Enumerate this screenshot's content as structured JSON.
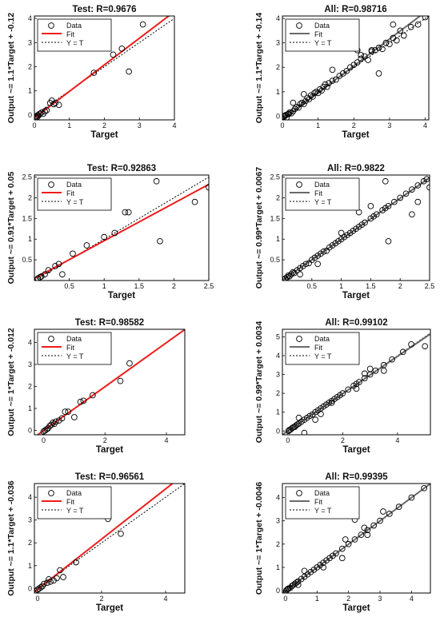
{
  "figure": {
    "type": "scatter-grid",
    "rows": 4,
    "cols": 2
  },
  "legend_labels": [
    "Data",
    "Fit",
    "Y = T"
  ],
  "colors": {
    "test_fit": "#ee1c1c",
    "all_fit": "#6a6a6a",
    "marker": "#000000",
    "identity": "#000000"
  },
  "chart_data": [
    {
      "type": "scatter",
      "title": "Test: R=0.9676",
      "xlabel": "Target",
      "ylabel": "Output ~= 1.1*Target + -0.12",
      "xlim": [
        0,
        4
      ],
      "ylim": [
        -0.2,
        4.1
      ],
      "xticks": [
        0,
        1,
        2,
        3,
        4
      ],
      "yticks": [
        0,
        1,
        2,
        3,
        4
      ],
      "fit": {
        "slope": 1.1,
        "intercept": -0.12
      },
      "legend": "top-left",
      "points": [
        [
          0.05,
          -0.05
        ],
        [
          0.1,
          0.0
        ],
        [
          0.15,
          0.05
        ],
        [
          0.2,
          0.1
        ],
        [
          0.08,
          -0.08
        ],
        [
          0.3,
          0.15
        ],
        [
          0.35,
          0.2
        ],
        [
          0.45,
          0.5
        ],
        [
          0.5,
          0.6
        ],
        [
          0.55,
          0.45
        ],
        [
          0.6,
          0.5
        ],
        [
          0.7,
          0.42
        ],
        [
          1.7,
          1.75
        ],
        [
          2.25,
          2.5
        ],
        [
          2.5,
          2.75
        ],
        [
          2.7,
          1.8
        ],
        [
          3.1,
          3.75
        ],
        [
          0.03,
          -0.1
        ],
        [
          0.12,
          -0.02
        ],
        [
          0.25,
          0.05
        ]
      ]
    },
    {
      "type": "scatter",
      "title": "All: R=0.98716",
      "xlabel": "Target",
      "ylabel": "Output ~= 1.1*Target + -0.14",
      "xlim": [
        0,
        4.1
      ],
      "ylim": [
        -0.15,
        4.1
      ],
      "xticks": [
        0,
        1,
        2,
        3,
        4
      ],
      "yticks": [
        0,
        1,
        2,
        3,
        4
      ],
      "fit": {
        "slope": 1.1,
        "intercept": -0.14
      },
      "legend": "top-left",
      "points": [
        [
          0.02,
          0.0
        ],
        [
          0.05,
          -0.02
        ],
        [
          0.08,
          0.03
        ],
        [
          0.1,
          0.05
        ],
        [
          0.12,
          -0.05
        ],
        [
          0.15,
          0.08
        ],
        [
          0.18,
          0.1
        ],
        [
          0.2,
          0.15
        ],
        [
          0.25,
          0.12
        ],
        [
          0.3,
          0.2
        ],
        [
          0.35,
          0.3
        ],
        [
          0.4,
          0.38
        ],
        [
          0.45,
          0.35
        ],
        [
          0.5,
          0.5
        ],
        [
          0.55,
          0.55
        ],
        [
          0.6,
          0.5
        ],
        [
          0.65,
          0.62
        ],
        [
          0.7,
          0.75
        ],
        [
          0.75,
          0.7
        ],
        [
          0.8,
          0.85
        ],
        [
          0.85,
          0.8
        ],
        [
          0.9,
          0.95
        ],
        [
          0.95,
          1.0
        ],
        [
          1.0,
          0.95
        ],
        [
          1.05,
          1.1
        ],
        [
          1.1,
          1.05
        ],
        [
          1.15,
          1.2
        ],
        [
          1.2,
          1.3
        ],
        [
          1.25,
          1.2
        ],
        [
          1.3,
          1.35
        ],
        [
          1.4,
          1.45
        ],
        [
          1.5,
          1.5
        ],
        [
          1.6,
          1.65
        ],
        [
          1.7,
          1.75
        ],
        [
          1.8,
          1.85
        ],
        [
          1.9,
          2.0
        ],
        [
          2.0,
          2.1
        ],
        [
          2.1,
          2.2
        ],
        [
          2.2,
          2.35
        ],
        [
          2.3,
          2.45
        ],
        [
          2.4,
          2.3
        ],
        [
          2.5,
          2.65
        ],
        [
          2.6,
          2.7
        ],
        [
          2.7,
          2.8
        ],
        [
          2.8,
          2.75
        ],
        [
          2.9,
          3.0
        ],
        [
          3.0,
          2.95
        ],
        [
          3.1,
          3.2
        ],
        [
          3.2,
          3.1
        ],
        [
          3.3,
          3.5
        ],
        [
          3.4,
          3.3
        ],
        [
          3.6,
          3.65
        ],
        [
          3.8,
          3.75
        ],
        [
          4.0,
          4.05
        ],
        [
          0.6,
          0.9
        ],
        [
          0.3,
          0.55
        ],
        [
          2.1,
          2.7
        ],
        [
          1.4,
          1.9
        ],
        [
          2.2,
          2.5
        ],
        [
          2.7,
          1.75
        ],
        [
          3.1,
          3.75
        ],
        [
          2.5,
          2.7
        ]
      ]
    },
    {
      "type": "scatter",
      "title": "Test: R=0.92863",
      "xlabel": "Target",
      "ylabel": "Output ~= 0.91*Target + 0.05",
      "xlim": [
        0,
        2.5
      ],
      "ylim": [
        0,
        2.55
      ],
      "xticks": [
        0.5,
        1,
        1.5,
        2,
        2.5
      ],
      "yticks": [
        0.5,
        1,
        1.5,
        2,
        2.5
      ],
      "fit": {
        "slope": 0.91,
        "intercept": 0.05
      },
      "legend": "top-left",
      "points": [
        [
          0.05,
          0.05
        ],
        [
          0.08,
          0.08
        ],
        [
          0.1,
          0.1
        ],
        [
          0.15,
          0.15
        ],
        [
          0.2,
          0.25
        ],
        [
          0.3,
          0.35
        ],
        [
          0.35,
          0.4
        ],
        [
          0.4,
          0.15
        ],
        [
          0.55,
          0.65
        ],
        [
          0.75,
          0.85
        ],
        [
          1.0,
          1.05
        ],
        [
          1.15,
          1.15
        ],
        [
          1.3,
          1.65
        ],
        [
          1.35,
          1.65
        ],
        [
          1.75,
          2.4
        ],
        [
          1.8,
          0.95
        ],
        [
          2.3,
          1.9
        ],
        [
          2.5,
          2.25
        ]
      ]
    },
    {
      "type": "scatter",
      "title": "All: R=0.9822",
      "xlabel": "Target",
      "ylabel": "Output ~= 0.99*Target + 0.0067",
      "xlim": [
        0,
        2.5
      ],
      "ylim": [
        0,
        2.55
      ],
      "xticks": [
        0.5,
        1,
        1.5,
        2,
        2.5
      ],
      "yticks": [
        0.5,
        1,
        1.5,
        2,
        2.5
      ],
      "fit": {
        "slope": 0.99,
        "intercept": 0.0067
      },
      "legend": "top-left",
      "points": [
        [
          0.02,
          0.02
        ],
        [
          0.05,
          0.05
        ],
        [
          0.08,
          0.08
        ],
        [
          0.1,
          0.12
        ],
        [
          0.12,
          0.1
        ],
        [
          0.15,
          0.15
        ],
        [
          0.18,
          0.2
        ],
        [
          0.2,
          0.18
        ],
        [
          0.25,
          0.25
        ],
        [
          0.3,
          0.3
        ],
        [
          0.35,
          0.35
        ],
        [
          0.4,
          0.4
        ],
        [
          0.45,
          0.42
        ],
        [
          0.5,
          0.5
        ],
        [
          0.55,
          0.55
        ],
        [
          0.6,
          0.6
        ],
        [
          0.65,
          0.65
        ],
        [
          0.7,
          0.7
        ],
        [
          0.75,
          0.72
        ],
        [
          0.8,
          0.8
        ],
        [
          0.85,
          0.85
        ],
        [
          0.9,
          0.9
        ],
        [
          0.95,
          0.95
        ],
        [
          1.0,
          1.0
        ],
        [
          1.05,
          1.05
        ],
        [
          1.1,
          1.1
        ],
        [
          1.15,
          1.15
        ],
        [
          1.2,
          1.2
        ],
        [
          1.25,
          1.25
        ],
        [
          1.3,
          1.3
        ],
        [
          1.35,
          1.35
        ],
        [
          1.4,
          1.4
        ],
        [
          1.5,
          1.5
        ],
        [
          1.55,
          1.55
        ],
        [
          1.6,
          1.6
        ],
        [
          1.7,
          1.7
        ],
        [
          1.75,
          1.75
        ],
        [
          1.8,
          1.8
        ],
        [
          1.9,
          1.9
        ],
        [
          2.0,
          2.0
        ],
        [
          2.1,
          2.1
        ],
        [
          2.2,
          2.2
        ],
        [
          2.3,
          2.3
        ],
        [
          2.4,
          2.4
        ],
        [
          2.45,
          2.45
        ],
        [
          0.6,
          0.4
        ],
        [
          1.0,
          1.15
        ],
        [
          1.5,
          1.8
        ],
        [
          1.75,
          2.4
        ],
        [
          1.8,
          0.95
        ],
        [
          2.2,
          1.6
        ],
        [
          2.3,
          1.9
        ],
        [
          2.5,
          2.25
        ],
        [
          0.3,
          0.15
        ],
        [
          1.3,
          1.65
        ]
      ]
    },
    {
      "type": "scatter",
      "title": "Test: R=0.98582",
      "xlabel": "Target",
      "ylabel": "Output ~= 1*Target + -0.012",
      "xlim": [
        -0.3,
        4.6
      ],
      "ylim": [
        -0.2,
        4.6
      ],
      "xticks": [
        0,
        2,
        4
      ],
      "yticks": [
        0,
        1,
        2,
        3,
        4
      ],
      "fit": {
        "slope": 1.0,
        "intercept": -0.012
      },
      "legend": "top-left",
      "points": [
        [
          0.0,
          -0.05
        ],
        [
          0.05,
          0.0
        ],
        [
          0.1,
          0.05
        ],
        [
          0.15,
          0.1
        ],
        [
          0.2,
          0.2
        ],
        [
          0.25,
          0.25
        ],
        [
          0.3,
          0.35
        ],
        [
          0.35,
          0.3
        ],
        [
          0.4,
          0.4
        ],
        [
          0.5,
          0.45
        ],
        [
          0.6,
          0.55
        ],
        [
          0.7,
          0.85
        ],
        [
          0.8,
          0.85
        ],
        [
          1.0,
          0.6
        ],
        [
          1.2,
          1.3
        ],
        [
          1.3,
          1.35
        ],
        [
          1.6,
          1.6
        ],
        [
          2.5,
          2.25
        ],
        [
          2.8,
          3.05
        ]
      ]
    },
    {
      "type": "scatter",
      "title": "All: R=0.99102",
      "xlabel": "Target",
      "ylabel": "Output ~= 0.99*Target + 0.0034",
      "xlim": [
        -0.2,
        5.2
      ],
      "ylim": [
        -0.2,
        5.4
      ],
      "xticks": [
        0,
        2,
        4
      ],
      "yticks": [
        0,
        1,
        2,
        3,
        4,
        5
      ],
      "fit": {
        "slope": 0.99,
        "intercept": 0.0034
      },
      "legend": "top-left",
      "points": [
        [
          0.02,
          0.0
        ],
        [
          0.05,
          0.05
        ],
        [
          0.1,
          0.08
        ],
        [
          0.15,
          0.15
        ],
        [
          0.2,
          0.2
        ],
        [
          0.25,
          0.22
        ],
        [
          0.3,
          0.3
        ],
        [
          0.35,
          0.35
        ],
        [
          0.4,
          0.4
        ],
        [
          0.5,
          0.5
        ],
        [
          0.6,
          0.6
        ],
        [
          0.7,
          0.7
        ],
        [
          0.8,
          0.8
        ],
        [
          0.9,
          0.88
        ],
        [
          1.0,
          1.0
        ],
        [
          1.1,
          1.1
        ],
        [
          1.2,
          1.2
        ],
        [
          1.3,
          1.3
        ],
        [
          1.4,
          1.4
        ],
        [
          1.5,
          1.5
        ],
        [
          1.6,
          1.6
        ],
        [
          1.7,
          1.7
        ],
        [
          1.8,
          1.8
        ],
        [
          1.9,
          1.9
        ],
        [
          2.0,
          2.0
        ],
        [
          2.2,
          2.2
        ],
        [
          2.4,
          2.4
        ],
        [
          2.5,
          2.5
        ],
        [
          2.6,
          2.6
        ],
        [
          2.8,
          2.8
        ],
        [
          3.0,
          3.0
        ],
        [
          3.2,
          3.2
        ],
        [
          3.5,
          3.5
        ],
        [
          3.8,
          3.8
        ],
        [
          4.2,
          4.2
        ],
        [
          4.5,
          4.6
        ],
        [
          5.0,
          4.5
        ],
        [
          0.6,
          -0.1
        ],
        [
          1.0,
          0.6
        ],
        [
          1.6,
          1.5
        ],
        [
          2.5,
          2.25
        ],
        [
          2.8,
          3.05
        ],
        [
          3.0,
          3.3
        ],
        [
          3.5,
          3.2
        ],
        [
          0.4,
          0.7
        ],
        [
          1.2,
          0.9
        ]
      ]
    },
    {
      "type": "scatter",
      "title": "Test: R=0.96561",
      "xlabel": "Target",
      "ylabel": "Output ~= 1.1*Target + -0.036",
      "xlim": [
        -0.1,
        4.6
      ],
      "ylim": [
        -0.2,
        4.6
      ],
      "xticks": [
        0,
        2,
        4
      ],
      "yticks": [
        0,
        1,
        2,
        3,
        4
      ],
      "fit": {
        "slope": 1.1,
        "intercept": -0.036
      },
      "legend": "top-left",
      "points": [
        [
          0.0,
          -0.05
        ],
        [
          0.05,
          0.0
        ],
        [
          0.1,
          0.05
        ],
        [
          0.15,
          0.1
        ],
        [
          0.2,
          0.2
        ],
        [
          0.3,
          0.25
        ],
        [
          0.35,
          0.4
        ],
        [
          0.4,
          0.3
        ],
        [
          0.5,
          0.35
        ],
        [
          0.6,
          0.45
        ],
        [
          0.7,
          0.8
        ],
        [
          0.8,
          0.5
        ],
        [
          1.2,
          1.15
        ],
        [
          2.2,
          3.05
        ],
        [
          2.6,
          2.4
        ]
      ]
    },
    {
      "type": "scatter",
      "title": "All: R=0.99395",
      "xlabel": "Target",
      "ylabel": "Output ~= 1*Target + -0.0046",
      "xlim": [
        -0.1,
        4.6
      ],
      "ylim": [
        -0.1,
        4.6
      ],
      "xticks": [
        0,
        1,
        2,
        3,
        4
      ],
      "yticks": [
        0,
        1,
        2,
        3,
        4
      ],
      "fit": {
        "slope": 1.0,
        "intercept": -0.0046
      },
      "legend": "top-left",
      "points": [
        [
          0.02,
          0.0
        ],
        [
          0.05,
          0.05
        ],
        [
          0.08,
          0.08
        ],
        [
          0.1,
          0.1
        ],
        [
          0.15,
          0.12
        ],
        [
          0.2,
          0.2
        ],
        [
          0.25,
          0.25
        ],
        [
          0.3,
          0.3
        ],
        [
          0.35,
          0.35
        ],
        [
          0.4,
          0.4
        ],
        [
          0.5,
          0.5
        ],
        [
          0.6,
          0.6
        ],
        [
          0.7,
          0.7
        ],
        [
          0.8,
          0.8
        ],
        [
          0.9,
          0.9
        ],
        [
          1.0,
          1.0
        ],
        [
          1.1,
          1.1
        ],
        [
          1.2,
          1.2
        ],
        [
          1.3,
          1.3
        ],
        [
          1.4,
          1.4
        ],
        [
          1.5,
          1.5
        ],
        [
          1.6,
          1.6
        ],
        [
          1.8,
          1.8
        ],
        [
          2.0,
          2.0
        ],
        [
          2.2,
          2.2
        ],
        [
          2.4,
          2.4
        ],
        [
          2.6,
          2.6
        ],
        [
          2.8,
          2.8
        ],
        [
          3.0,
          3.0
        ],
        [
          3.3,
          3.3
        ],
        [
          3.6,
          3.6
        ],
        [
          4.0,
          4.0
        ],
        [
          4.4,
          4.4
        ],
        [
          2.2,
          3.05
        ],
        [
          2.6,
          2.4
        ],
        [
          1.8,
          1.4
        ],
        [
          1.9,
          2.2
        ],
        [
          2.5,
          2.7
        ],
        [
          0.6,
          0.85
        ],
        [
          1.2,
          1.0
        ],
        [
          3.1,
          3.4
        ],
        [
          0.4,
          0.25
        ]
      ]
    }
  ]
}
